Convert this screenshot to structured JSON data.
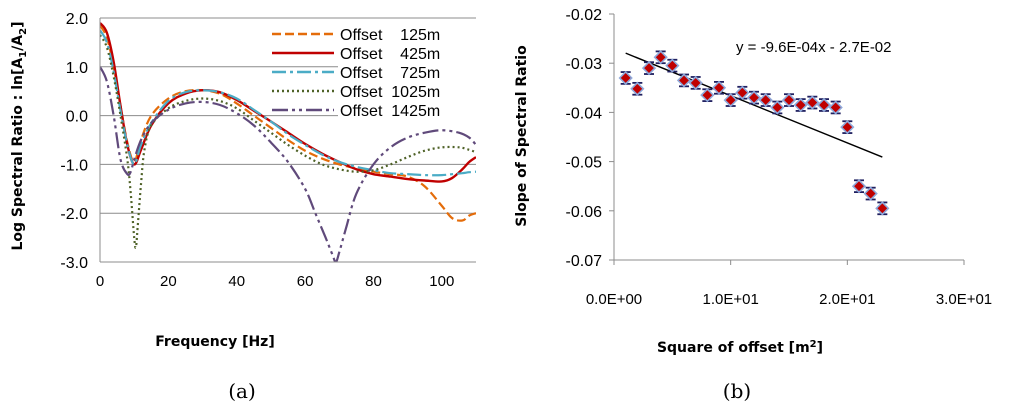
{
  "chart_data": [
    {
      "type": "line",
      "panel_label": "(a)",
      "xlabel": "Frequency [Hz]",
      "ylabel_main": "Log Spectral Ratio : ln[A",
      "ylabel_sub1": "1",
      "ylabel_mid": "/A",
      "ylabel_sub2": "2",
      "ylabel_end": "]",
      "xlim": [
        0,
        110
      ],
      "ylim": [
        -3.0,
        2.0
      ],
      "x_ticks": [
        "0",
        "20",
        "40",
        "60",
        "80",
        "100"
      ],
      "y_ticks": [
        "2.0",
        "1.0",
        "0.0",
        "-1.0",
        "-2.0",
        "-3.0"
      ],
      "grid": "horizontal",
      "legend_position": "top-right",
      "series": [
        {
          "name": "Offset    125m",
          "color": "#E46C0A",
          "style": "dashed",
          "x": [
            0,
            2,
            4,
            6,
            8,
            10,
            12,
            15,
            20,
            25,
            30,
            35,
            40,
            45,
            50,
            55,
            60,
            65,
            70,
            75,
            80,
            85,
            90,
            95,
            100,
            103,
            106,
            108,
            110
          ],
          "y": [
            1.85,
            1.6,
            1.0,
            0.2,
            -0.55,
            -0.95,
            -0.5,
            0.0,
            0.35,
            0.5,
            0.52,
            0.45,
            0.25,
            0.0,
            -0.25,
            -0.5,
            -0.72,
            -0.88,
            -1.0,
            -1.08,
            -1.15,
            -1.2,
            -1.25,
            -1.45,
            -1.85,
            -2.1,
            -2.15,
            -2.05,
            -2.0
          ]
        },
        {
          "name": "Offset    425m",
          "color": "#C00000",
          "style": "solid",
          "x": [
            0,
            2,
            4,
            6,
            8,
            10,
            12,
            15,
            20,
            25,
            30,
            35,
            40,
            45,
            50,
            55,
            60,
            65,
            70,
            75,
            80,
            85,
            90,
            95,
            100,
            103,
            106,
            108,
            110
          ],
          "y": [
            1.9,
            1.7,
            1.1,
            0.2,
            -0.6,
            -1.0,
            -0.7,
            -0.2,
            0.25,
            0.45,
            0.52,
            0.48,
            0.32,
            0.1,
            -0.12,
            -0.35,
            -0.58,
            -0.78,
            -0.95,
            -1.1,
            -1.2,
            -1.25,
            -1.3,
            -1.33,
            -1.35,
            -1.28,
            -1.1,
            -0.95,
            -0.85
          ]
        },
        {
          "name": "Offset    725m",
          "color": "#4BACC6",
          "style": "dashdot",
          "x": [
            0,
            2,
            4,
            6,
            8,
            10,
            12,
            15,
            20,
            25,
            30,
            35,
            40,
            45,
            50,
            55,
            60,
            65,
            70,
            75,
            80,
            85,
            90,
            95,
            100,
            103,
            106,
            108,
            110
          ],
          "y": [
            1.75,
            1.5,
            0.9,
            0.1,
            -0.6,
            -1.0,
            -0.6,
            -0.15,
            0.3,
            0.48,
            0.52,
            0.48,
            0.35,
            0.12,
            -0.12,
            -0.38,
            -0.6,
            -0.8,
            -0.95,
            -1.05,
            -1.12,
            -1.18,
            -1.2,
            -1.22,
            -1.22,
            -1.2,
            -1.18,
            -1.16,
            -1.15
          ]
        },
        {
          "name": "Offset  1025m",
          "color": "#4F6228",
          "style": "dotted",
          "x": [
            0,
            2,
            4,
            6,
            8,
            9,
            10,
            10.5,
            11,
            12,
            13,
            15,
            20,
            25,
            30,
            35,
            40,
            45,
            50,
            55,
            60,
            65,
            70,
            75,
            80,
            85,
            90,
            95,
            100,
            105,
            108,
            110
          ],
          "y": [
            1.65,
            1.4,
            0.8,
            0.0,
            -0.9,
            -1.6,
            -2.5,
            -2.7,
            -2.3,
            -1.4,
            -0.7,
            -0.2,
            0.15,
            0.3,
            0.35,
            0.3,
            0.15,
            -0.1,
            -0.35,
            -0.6,
            -0.82,
            -1.0,
            -1.1,
            -1.15,
            -1.12,
            -1.0,
            -0.85,
            -0.72,
            -0.65,
            -0.65,
            -0.7,
            -0.75
          ]
        },
        {
          "name": "Offset  1425m",
          "color": "#604A7B",
          "style": "dashdotdot",
          "x": [
            0,
            2,
            4,
            6,
            8,
            9,
            10,
            12,
            15,
            20,
            25,
            30,
            35,
            40,
            45,
            50,
            55,
            60,
            63,
            66,
            68,
            69,
            70,
            72,
            75,
            80,
            85,
            90,
            95,
            100,
            105,
            108,
            110
          ],
          "y": [
            1.0,
            0.7,
            0.0,
            -0.9,
            -1.2,
            -1.15,
            -0.9,
            -0.5,
            -0.15,
            0.12,
            0.25,
            0.28,
            0.22,
            0.05,
            -0.2,
            -0.55,
            -0.95,
            -1.5,
            -2.0,
            -2.5,
            -2.85,
            -3.0,
            -2.8,
            -2.3,
            -1.6,
            -1.0,
            -0.65,
            -0.45,
            -0.35,
            -0.3,
            -0.35,
            -0.45,
            -0.6
          ]
        }
      ]
    },
    {
      "type": "scatter",
      "panel_label": "(b)",
      "xlabel_main": "Square of offset [m",
      "xlabel_sup": "2",
      "xlabel_end": "]",
      "ylabel": "Slope of Spectral Ratio",
      "xlim": [
        0,
        30
      ],
      "ylim": [
        -0.07,
        -0.02
      ],
      "x_ticks": [
        "0.0E+00",
        "1.0E+01",
        "2.0E+01",
        "3.0E+01"
      ],
      "y_ticks": [
        "-0.02",
        "-0.03",
        "-0.04",
        "-0.05",
        "-0.06",
        "-0.07"
      ],
      "grid": "none",
      "equation": "y = -9.6E-04x - 2.7E-02",
      "trendline": {
        "slope": -0.00096,
        "intercept": -0.027,
        "x_range": [
          1,
          23
        ]
      },
      "marker_color": "#C00000",
      "marker_edge": "#8EA9DB",
      "errorbar_color": "#1F1F5F",
      "points": {
        "x": [
          1,
          2,
          3,
          4,
          5,
          6,
          7,
          8,
          9,
          10,
          11,
          12,
          13,
          14,
          15,
          16,
          17,
          18,
          19,
          20,
          21,
          22,
          23
        ],
        "y": [
          -0.033,
          -0.0352,
          -0.031,
          -0.0288,
          -0.0305,
          -0.0335,
          -0.034,
          -0.0365,
          -0.035,
          -0.0375,
          -0.036,
          -0.037,
          -0.0375,
          -0.039,
          -0.0375,
          -0.0385,
          -0.038,
          -0.0385,
          -0.039,
          -0.043,
          -0.055,
          -0.0565,
          -0.0595
        ],
        "error": [
          0.0012,
          0.0012,
          0.0012,
          0.0012,
          0.0012,
          0.0012,
          0.0012,
          0.0012,
          0.0012,
          0.0012,
          0.0012,
          0.0012,
          0.0012,
          0.0012,
          0.0012,
          0.0012,
          0.0012,
          0.0012,
          0.0012,
          0.0012,
          0.0012,
          0.0012,
          0.0012
        ]
      }
    }
  ]
}
